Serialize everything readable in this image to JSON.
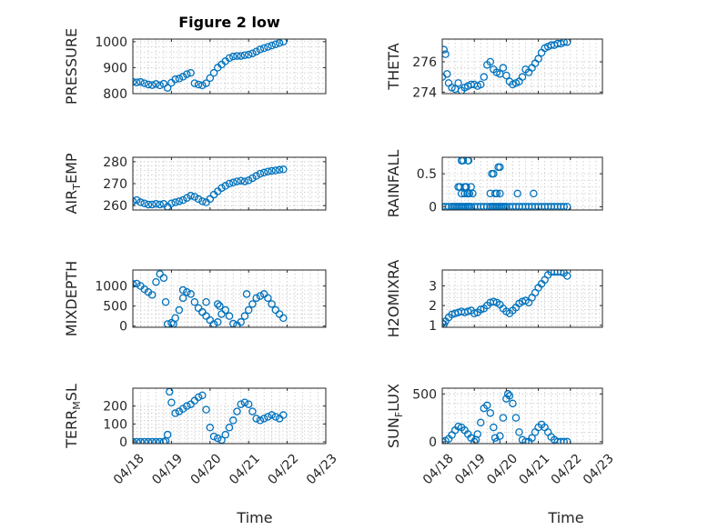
{
  "figure": {
    "title": "Figure 2 low"
  },
  "chart_data": [
    {
      "type": "scatter",
      "title": "Figure 2 low",
      "ylabel": "PRESSURE",
      "xlabel": "",
      "xlim": [
        0,
        5
      ],
      "ylim": [
        800,
        1010
      ],
      "yticks": [
        800,
        900,
        1000
      ],
      "ytick_labels": [
        "800",
        "900",
        "1000"
      ],
      "xticks": [
        0,
        1,
        2,
        3,
        4,
        5
      ],
      "grid": true,
      "color": "#0072bd",
      "x": [
        0,
        0.1,
        0.2,
        0.3,
        0.4,
        0.5,
        0.6,
        0.7,
        0.8,
        0.9,
        1.0,
        1.1,
        1.2,
        1.3,
        1.4,
        1.5,
        1.6,
        1.7,
        1.8,
        1.9,
        2.0,
        2.1,
        2.2,
        2.3,
        2.4,
        2.5,
        2.6,
        2.7,
        2.8,
        2.9,
        3.0,
        3.1,
        3.2,
        3.3,
        3.4,
        3.5,
        3.6,
        3.7,
        3.8,
        3.9
      ],
      "y": [
        845,
        843,
        845,
        840,
        835,
        833,
        837,
        832,
        838,
        822,
        842,
        855,
        858,
        865,
        875,
        880,
        840,
        835,
        832,
        840,
        860,
        880,
        900,
        912,
        925,
        937,
        943,
        945,
        945,
        948,
        950,
        955,
        962,
        970,
        975,
        980,
        985,
        990,
        995,
        1000
      ]
    },
    {
      "type": "scatter",
      "title": "",
      "ylabel": "THETA",
      "xlabel": "",
      "xlim": [
        0,
        5
      ],
      "ylim": [
        273.9,
        277.5
      ],
      "yticks": [
        274,
        276
      ],
      "ytick_labels": [
        "274",
        "276"
      ],
      "xticks": [
        0,
        1,
        2,
        3,
        4,
        5
      ],
      "grid": true,
      "color": "#0072bd",
      "x": [
        0,
        0.05,
        0.1,
        0.15,
        0.2,
        0.3,
        0.4,
        0.5,
        0.6,
        0.7,
        0.8,
        0.9,
        1.0,
        1.1,
        1.2,
        1.3,
        1.4,
        1.5,
        1.6,
        1.7,
        1.8,
        1.9,
        2.0,
        2.1,
        2.2,
        2.3,
        2.4,
        2.5,
        2.6,
        2.7,
        2.8,
        2.9,
        3.0,
        3.1,
        3.2,
        3.3,
        3.4,
        3.5,
        3.6,
        3.7,
        3.8,
        3.9
      ],
      "y": [
        275,
        276.8,
        276.5,
        275.2,
        274.6,
        274.3,
        274.2,
        274.6,
        274.1,
        274.3,
        274.4,
        274.5,
        274.5,
        274.4,
        274.5,
        275,
        275.8,
        276,
        275.5,
        275.3,
        275.2,
        275.6,
        275.1,
        274.7,
        274.5,
        274.6,
        274.7,
        275,
        275.5,
        275.3,
        275.6,
        275.9,
        276.2,
        276.6,
        276.9,
        277,
        277.1,
        277.1,
        277.2,
        277.2,
        277.3,
        277.3
      ]
    },
    {
      "type": "scatter",
      "title": "",
      "ylabel": "AIR_TEMP",
      "xlabel": "",
      "xlim": [
        0,
        5
      ],
      "ylim": [
        258,
        282
      ],
      "yticks": [
        260,
        270,
        280
      ],
      "ytick_labels": [
        "260",
        "270",
        "280"
      ],
      "xticks": [
        0,
        1,
        2,
        3,
        4,
        5
      ],
      "grid": true,
      "color": "#0072bd",
      "x": [
        0,
        0.1,
        0.2,
        0.3,
        0.4,
        0.5,
        0.6,
        0.7,
        0.8,
        0.9,
        1.0,
        1.1,
        1.2,
        1.3,
        1.4,
        1.5,
        1.6,
        1.7,
        1.8,
        1.9,
        2.0,
        2.1,
        2.2,
        2.3,
        2.4,
        2.5,
        2.6,
        2.7,
        2.8,
        2.9,
        3.0,
        3.1,
        3.2,
        3.3,
        3.4,
        3.5,
        3.6,
        3.7,
        3.8,
        3.9
      ],
      "y": [
        262,
        262.5,
        261.5,
        261,
        260.5,
        260.5,
        260.8,
        260.5,
        260.8,
        259.5,
        261,
        261.5,
        262,
        262.5,
        263.5,
        264.5,
        264,
        263,
        262,
        261.5,
        263,
        265,
        266.5,
        268,
        269,
        270,
        270.5,
        271,
        271.3,
        271,
        271.5,
        272.5,
        273.5,
        274.5,
        275,
        275.5,
        275.8,
        276,
        276.3,
        276.5
      ]
    },
    {
      "type": "scatter",
      "title": "",
      "ylabel": "RAINFALL",
      "xlabel": "",
      "xlim": [
        0,
        5
      ],
      "ylim": [
        -0.05,
        0.75
      ],
      "yticks": [
        0,
        0.5
      ],
      "ytick_labels": [
        "0",
        "0.5"
      ],
      "xticks": [
        0,
        1,
        2,
        3,
        4,
        5
      ],
      "grid": true,
      "color": "#0072bd",
      "x": [
        0,
        0.1,
        0.2,
        0.3,
        0.35,
        0.4,
        0.45,
        0.5,
        0.55,
        0.6,
        0.65,
        0.7,
        0.75,
        0.8,
        0.85,
        0.9,
        1.0,
        1.1,
        1.2,
        1.3,
        1.4,
        1.5,
        1.55,
        1.6,
        1.65,
        1.7,
        1.75,
        1.8,
        1.85,
        1.9,
        1.95,
        2.0,
        2.1,
        2.2,
        2.3,
        2.4,
        2.5,
        2.6,
        2.7,
        2.8,
        2.9,
        3.0,
        3.1,
        3.2,
        3.3,
        3.4,
        3.5,
        3.6,
        3.7,
        3.8,
        3.9,
        0.5,
        0.55,
        0.6,
        0.7,
        0.75,
        0.8,
        0.85,
        0.9,
        0.95,
        0.6,
        0.65,
        0.7,
        0.8,
        0.82,
        1.5,
        1.55,
        1.6,
        1.65,
        1.7,
        1.75,
        1.8,
        1.8,
        2.35,
        2.85,
        0.72,
        0.78
      ],
      "y": [
        0,
        0,
        0,
        0,
        0,
        0,
        0,
        0,
        0,
        0,
        0,
        0,
        0,
        0,
        0,
        0,
        0,
        0,
        0,
        0,
        0,
        0,
        0,
        0,
        0,
        0,
        0,
        0,
        0,
        0,
        0,
        0,
        0,
        0,
        0,
        0,
        0,
        0,
        0,
        0,
        0,
        0,
        0,
        0,
        0,
        0,
        0,
        0,
        0,
        0,
        0,
        0.3,
        0.3,
        0.2,
        0.2,
        0.3,
        0.2,
        0.2,
        0.3,
        0.2,
        0.7,
        0.7,
        0.3,
        0.7,
        0.7,
        0.2,
        0.5,
        0.5,
        0.2,
        0.2,
        0.6,
        0.6,
        0.2,
        0.2,
        0.2,
        0.3,
        0.2
      ]
    },
    {
      "type": "scatter",
      "title": "",
      "ylabel": "MIXDEPTH",
      "xlabel": "",
      "xlim": [
        0,
        5
      ],
      "ylim": [
        -30,
        1400
      ],
      "yticks": [
        0,
        500,
        1000
      ],
      "ytick_labels": [
        "0",
        "500",
        "1000"
      ],
      "xticks": [
        0,
        1,
        2,
        3,
        4,
        5
      ],
      "grid": true,
      "color": "#0072bd",
      "x": [
        0,
        0.1,
        0.2,
        0.3,
        0.4,
        0.5,
        0.6,
        0.7,
        0.8,
        0.85,
        0.9,
        1.0,
        1.05,
        1.1,
        1.2,
        1.3,
        1.4,
        1.5,
        1.6,
        1.7,
        1.8,
        1.9,
        2.0,
        2.1,
        2.2,
        2.3,
        2.4,
        2.5,
        2.6,
        2.7,
        2.8,
        2.9,
        3.0,
        3.1,
        3.2,
        3.3,
        3.4,
        3.5,
        3.6,
        3.7,
        3.8,
        3.9,
        1.3,
        1.8,
        1.9,
        2.2,
        2.25,
        2.95
      ],
      "y": [
        1050,
        1060,
        1000,
        920,
        850,
        780,
        1100,
        1300,
        1200,
        600,
        50,
        80,
        50,
        200,
        400,
        700,
        850,
        800,
        600,
        450,
        350,
        250,
        150,
        50,
        100,
        300,
        400,
        250,
        60,
        20,
        100,
        250,
        400,
        550,
        700,
        750,
        800,
        700,
        550,
        400,
        300,
        200,
        900,
        350,
        600,
        550,
        500,
        800
      ]
    },
    {
      "type": "scatter",
      "title": "",
      "ylabel": "H2OMIXRA",
      "xlabel": "",
      "xlim": [
        0,
        5
      ],
      "ylim": [
        0.9,
        3.8
      ],
      "yticks": [
        1,
        2,
        3
      ],
      "ytick_labels": [
        "1",
        "2",
        "3"
      ],
      "xticks": [
        0,
        1,
        2,
        3,
        4,
        5
      ],
      "grid": true,
      "color": "#0072bd",
      "x": [
        0,
        0.05,
        0.1,
        0.2,
        0.3,
        0.4,
        0.5,
        0.6,
        0.7,
        0.8,
        0.9,
        1.0,
        1.1,
        1.2,
        1.3,
        1.4,
        1.5,
        1.6,
        1.7,
        1.8,
        1.9,
        2.0,
        2.1,
        2.2,
        2.3,
        2.4,
        2.5,
        2.6,
        2.7,
        2.8,
        2.9,
        3.0,
        3.1,
        3.2,
        3.3,
        3.4,
        3.5,
        3.6,
        3.7,
        3.8,
        3.9
      ],
      "y": [
        1.1,
        1.05,
        1.2,
        1.4,
        1.55,
        1.6,
        1.65,
        1.7,
        1.65,
        1.7,
        1.75,
        1.6,
        1.65,
        1.8,
        1.85,
        2.0,
        2.15,
        2.2,
        2.15,
        2.05,
        1.85,
        1.7,
        1.6,
        1.75,
        1.9,
        2.1,
        2.2,
        2.25,
        2.15,
        2.4,
        2.65,
        2.9,
        3.1,
        3.3,
        3.55,
        3.7,
        3.7,
        3.7,
        3.7,
        3.65,
        3.5
      ]
    },
    {
      "type": "scatter",
      "title": "",
      "ylabel": "TERR_MSL",
      "xlabel": "Time",
      "xlim": [
        0,
        5
      ],
      "ylim": [
        -10,
        300
      ],
      "yticks": [
        0,
        100,
        200
      ],
      "ytick_labels": [
        "0",
        "100",
        "200"
      ],
      "xticks": [
        0,
        1,
        2,
        3,
        4,
        5
      ],
      "xtick_labels": [
        "04/18",
        "04/19",
        "04/20",
        "04/21",
        "04/22",
        "04/23"
      ],
      "grid": true,
      "color": "#0072bd",
      "x": [
        0,
        0.1,
        0.2,
        0.3,
        0.4,
        0.5,
        0.6,
        0.7,
        0.8,
        0.85,
        0.9,
        0.95,
        1.0,
        1.1,
        1.2,
        1.3,
        1.4,
        1.5,
        1.6,
        1.7,
        1.8,
        1.9,
        2.0,
        2.1,
        2.2,
        2.3,
        2.4,
        2.5,
        2.6,
        2.7,
        2.8,
        2.9,
        3.0,
        3.1,
        3.2,
        3.3,
        3.4,
        3.5,
        3.6,
        3.7,
        3.8,
        3.9
      ],
      "y": [
        0,
        0,
        0,
        0,
        0,
        0,
        0,
        0,
        0,
        5,
        40,
        280,
        220,
        160,
        170,
        185,
        200,
        210,
        230,
        250,
        260,
        180,
        80,
        30,
        20,
        10,
        40,
        80,
        120,
        170,
        210,
        220,
        210,
        170,
        130,
        120,
        130,
        140,
        150,
        140,
        130,
        150
      ]
    },
    {
      "type": "scatter",
      "title": "",
      "ylabel": "SUN_FLUX",
      "xlabel": "Time",
      "xlim": [
        0,
        5
      ],
      "ylim": [
        -20,
        560
      ],
      "yticks": [
        0,
        500
      ],
      "ytick_labels": [
        "0",
        "500"
      ],
      "xticks": [
        0,
        1,
        2,
        3,
        4,
        5
      ],
      "xtick_labels": [
        "04/18",
        "04/19",
        "04/20",
        "04/21",
        "04/22",
        "04/23"
      ],
      "grid": true,
      "color": "#0072bd",
      "x": [
        0,
        0.1,
        0.2,
        0.3,
        0.4,
        0.5,
        0.6,
        0.7,
        0.8,
        0.9,
        1.0,
        1.05,
        1.1,
        1.2,
        1.3,
        1.4,
        1.5,
        1.6,
        1.65,
        1.7,
        1.8,
        1.9,
        2.0,
        2.05,
        2.1,
        2.2,
        2.3,
        2.4,
        2.5,
        2.6,
        2.7,
        2.8,
        2.9,
        3.0,
        3.1,
        3.2,
        3.3,
        3.4,
        3.5,
        3.6,
        3.7,
        3.8,
        3.9
      ],
      "y": [
        0,
        10,
        30,
        70,
        120,
        160,
        150,
        120,
        80,
        40,
        0,
        20,
        80,
        200,
        350,
        380,
        300,
        150,
        40,
        0,
        60,
        250,
        450,
        500,
        480,
        400,
        250,
        100,
        20,
        0,
        0,
        40,
        100,
        150,
        180,
        150,
        100,
        50,
        20,
        0,
        0,
        0,
        0
      ]
    }
  ],
  "subplot_ylabels": [
    {
      "main": "PRESSURE",
      "sub": "",
      "tail": ""
    },
    {
      "main": "THETA",
      "sub": "",
      "tail": ""
    },
    {
      "main": "AIR",
      "sub": "T",
      "tail": "EMP"
    },
    {
      "main": "RAINFALL",
      "sub": "",
      "tail": ""
    },
    {
      "main": "MIXDEPTH",
      "sub": "",
      "tail": ""
    },
    {
      "main": "H2OMIXRA",
      "sub": "",
      "tail": ""
    },
    {
      "main": "TERR",
      "sub": "M",
      "tail": "SL"
    },
    {
      "main": "SUN",
      "sub": "F",
      "tail": "LUX"
    }
  ],
  "subplot_xlabels": [
    "",
    "",
    "",
    "",
    "",
    "",
    "Time",
    "Time"
  ]
}
